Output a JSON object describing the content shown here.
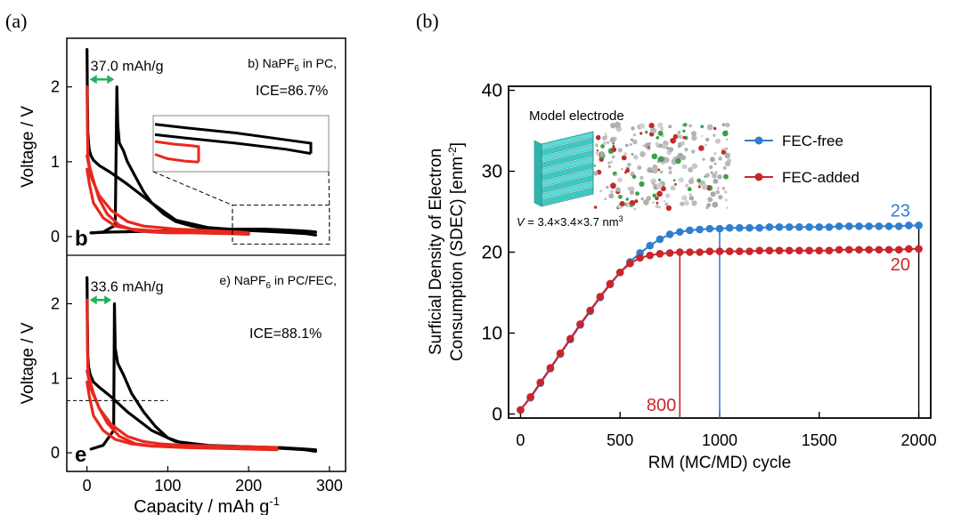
{
  "colors": {
    "black_curve": "#000000",
    "red_curve": "#e8281e",
    "green_arrow": "#1db25a",
    "blue_series": "#2f7fd0",
    "red_series": "#c8262c"
  },
  "chart_data": [
    {
      "panel_tag": "(a)",
      "type": "line",
      "x_ticks": [
        "0",
        "100",
        "200",
        "300"
      ],
      "xlabel": "Capacity / mAh g",
      "xlabel_sup": "-1",
      "xlim": [
        -25,
        320
      ],
      "subplots": [
        {
          "panel_letter": "b",
          "ylabel": "Voltage / V",
          "y_ticks": [
            "0",
            "1",
            "2"
          ],
          "ylim": [
            -0.25,
            2.65
          ],
          "electrolyte_prefix": "b) NaPF",
          "electrolyte_sub": "6",
          "electrolyte_suffix": " in PC,",
          "ice_label": "ICE=86.7%",
          "arrow_label": "37.0 mAh/g",
          "arrow_x": [
            0,
            37
          ],
          "arrow_y": 2.1,
          "inset": "zoom of dashed region",
          "zoom_box_x": [
            180,
            300
          ],
          "zoom_box_y": [
            -0.1,
            0.42
          ],
          "series": [
            {
              "color": "black",
              "role": "discharge",
              "x": [
                0,
                0.5,
                1,
                2,
                3,
                5,
                8,
                15,
                30,
                50,
                80,
                110,
                150,
                200,
                240,
                270,
                283
              ],
              "y": [
                2.5,
                1.9,
                1.4,
                1.25,
                1.15,
                1.08,
                1.02,
                0.95,
                0.85,
                0.7,
                0.45,
                0.22,
                0.12,
                0.08,
                0.06,
                0.04,
                0.02
              ]
            },
            {
              "color": "black",
              "role": "charge",
              "x": [
                5,
                30,
                70,
                110,
                130,
                140,
                150,
                160,
                180,
                200,
                220,
                240,
                260,
                275,
                283
              ],
              "y": [
                0.05,
                0.06,
                0.07,
                0.08,
                0.08,
                0.09,
                0.1,
                0.1,
                0.1,
                0.1,
                0.1,
                0.09,
                0.08,
                0.07,
                0.06
              ]
            },
            {
              "color": "black",
              "role": "charge-tail",
              "x": [
                5,
                20,
                35,
                37,
                38,
                40,
                45,
                50,
                60,
                70,
                80,
                95,
                110,
                130,
                150
              ],
              "y": [
                0.05,
                0.06,
                0.15,
                2.0,
                1.5,
                1.25,
                1.15,
                1.0,
                0.8,
                0.6,
                0.45,
                0.3,
                0.2,
                0.14,
                0.1
              ]
            },
            {
              "color": "red",
              "role": "discharge",
              "x": [
                0,
                0.5,
                1,
                2,
                4,
                8,
                15,
                25,
                40,
                60,
                80,
                100,
                130,
                170,
                200
              ],
              "y": [
                2.0,
                1.5,
                1.1,
                1.0,
                0.9,
                0.75,
                0.5,
                0.3,
                0.15,
                0.08,
                0.06,
                0.05,
                0.05,
                0.04,
                0.03
              ]
            },
            {
              "color": "red",
              "role": "charge",
              "x": [
                0,
                5,
                15,
                30,
                50,
                70,
                90,
                110,
                130,
                150,
                170,
                190,
                200
              ],
              "y": [
                1.08,
                0.8,
                0.55,
                0.35,
                0.2,
                0.14,
                0.12,
                0.1,
                0.09,
                0.08,
                0.07,
                0.06,
                0.05
              ]
            },
            {
              "color": "red",
              "role": "loop",
              "x": [
                0,
                3,
                8,
                20,
                35,
                55,
                80,
                120,
                160,
                200
              ],
              "y": [
                0.9,
                0.7,
                0.45,
                0.25,
                0.14,
                0.1,
                0.08,
                0.06,
                0.05,
                0.04
              ]
            }
          ]
        },
        {
          "panel_letter": "e",
          "ylabel": "Voltage / V",
          "y_ticks": [
            "0",
            "1",
            "2"
          ],
          "ylim": [
            -0.25,
            2.65
          ],
          "electrolyte_prefix": "e) NaPF",
          "electrolyte_sub": "6",
          "electrolyte_suffix": " in PC/FEC,",
          "ice_label": "ICE=88.1%",
          "arrow_label": "33.6 mAh/g",
          "arrow_x": [
            0,
            33.6
          ],
          "arrow_y": 2.05,
          "dashed_line_y": 0.7,
          "dashed_line_x": [
            -25,
            100
          ],
          "series": [
            {
              "color": "black",
              "role": "discharge",
              "x": [
                0,
                0.5,
                1,
                2,
                4,
                8,
                15,
                30,
                50,
                80,
                110,
                150,
                200,
                240,
                270,
                283
              ],
              "y": [
                2.35,
                1.8,
                1.3,
                1.15,
                1.05,
                0.95,
                0.88,
                0.75,
                0.55,
                0.3,
                0.15,
                0.1,
                0.08,
                0.06,
                0.04,
                0.02
              ]
            },
            {
              "color": "black",
              "role": "charge",
              "x": [
                5,
                20,
                33,
                34,
                35,
                38,
                45,
                55,
                70,
                85,
                100,
                120
              ],
              "y": [
                0.05,
                0.1,
                0.3,
                2.0,
                1.4,
                1.2,
                1.05,
                0.8,
                0.55,
                0.35,
                0.2,
                0.12
              ]
            },
            {
              "color": "black",
              "role": "charge-flat",
              "x": [
                110,
                150,
                200,
                240,
                270,
                283
              ],
              "y": [
                0.09,
                0.09,
                0.08,
                0.07,
                0.05,
                0.04
              ]
            },
            {
              "color": "red",
              "role": "discharge",
              "x": [
                0,
                0.5,
                1,
                2,
                4,
                8,
                15,
                25,
                40,
                60,
                80,
                110,
                150,
                200,
                235
              ],
              "y": [
                2.05,
                1.5,
                1.15,
                1.05,
                0.95,
                0.8,
                0.6,
                0.4,
                0.22,
                0.12,
                0.09,
                0.08,
                0.07,
                0.06,
                0.05
              ]
            },
            {
              "color": "red",
              "role": "charge",
              "x": [
                0,
                5,
                15,
                30,
                50,
                70,
                90,
                120,
                160,
                200,
                235
              ],
              "y": [
                1.1,
                0.85,
                0.6,
                0.38,
                0.22,
                0.15,
                0.12,
                0.1,
                0.09,
                0.08,
                0.07
              ]
            },
            {
              "color": "red",
              "role": "loop",
              "x": [
                0,
                3,
                8,
                20,
                35,
                55,
                80,
                120,
                160,
                200,
                235
              ],
              "y": [
                0.95,
                0.75,
                0.5,
                0.3,
                0.18,
                0.12,
                0.09,
                0.07,
                0.06,
                0.05,
                0.04
              ]
            }
          ]
        }
      ]
    },
    {
      "panel_tag": "(b)",
      "type": "line",
      "ylabel_line1": "Surficial Density of Electron",
      "ylabel_line2": "Consumption (SDEC) [enm",
      "ylabel_sup": "-2",
      "ylabel_end": "]",
      "xlabel": "RM (MC/MD) cycle",
      "x_ticks": [
        "0",
        "500",
        "1000",
        "1500",
        "2000"
      ],
      "y_ticks": [
        "0",
        "10",
        "20",
        "30",
        "40"
      ],
      "xlim": [
        -60,
        2060
      ],
      "ylim": [
        -0.5,
        40.5
      ],
      "legend_position": "top-right",
      "inset_title": "Model electrode",
      "inset_volume_italic": "V",
      "inset_volume_text": " = 3.4×3.4×3.7 nm",
      "inset_volume_sup": "3",
      "series": [
        {
          "name": "FEC-free",
          "color": "blue",
          "end_label": "23",
          "marker_line_x": 1000,
          "x": [
            0,
            50,
            100,
            150,
            200,
            250,
            300,
            350,
            400,
            450,
            500,
            550,
            600,
            650,
            700,
            750,
            800,
            850,
            900,
            950,
            1000,
            1050,
            1100,
            1150,
            1200,
            1250,
            1300,
            1350,
            1400,
            1450,
            1500,
            1550,
            1600,
            1650,
            1700,
            1750,
            1800,
            1850,
            1900,
            1950,
            2000
          ],
          "y": [
            0.5,
            2.0,
            3.8,
            5.6,
            7.4,
            9.2,
            11.0,
            12.7,
            14.4,
            16.0,
            17.5,
            18.8,
            19.9,
            20.8,
            21.6,
            22.2,
            22.5,
            22.7,
            22.8,
            22.9,
            22.9,
            23.0,
            23.0,
            23.0,
            23.0,
            23.1,
            23.1,
            23.1,
            23.1,
            23.1,
            23.1,
            23.1,
            23.2,
            23.2,
            23.2,
            23.2,
            23.2,
            23.2,
            23.2,
            23.3,
            23.3
          ]
        },
        {
          "name": "FEC-added",
          "color": "red",
          "end_label": "20",
          "marker_line_x": 800,
          "marker_label": "800",
          "x": [
            0,
            50,
            100,
            150,
            200,
            250,
            300,
            350,
            400,
            450,
            500,
            550,
            600,
            650,
            700,
            750,
            800,
            850,
            900,
            950,
            1000,
            1050,
            1100,
            1150,
            1200,
            1250,
            1300,
            1350,
            1400,
            1450,
            1500,
            1550,
            1600,
            1650,
            1700,
            1750,
            1800,
            1850,
            1900,
            1950,
            2000
          ],
          "y": [
            0.5,
            2.1,
            3.9,
            5.7,
            7.5,
            9.3,
            11.1,
            12.8,
            14.5,
            16.1,
            17.5,
            18.6,
            19.3,
            19.6,
            19.8,
            19.9,
            20.0,
            20.0,
            20.0,
            20.1,
            20.1,
            20.1,
            20.1,
            20.1,
            20.2,
            20.2,
            20.2,
            20.2,
            20.2,
            20.2,
            20.2,
            20.2,
            20.3,
            20.3,
            20.3,
            20.3,
            20.3,
            20.3,
            20.3,
            20.4,
            20.4
          ]
        }
      ]
    }
  ]
}
